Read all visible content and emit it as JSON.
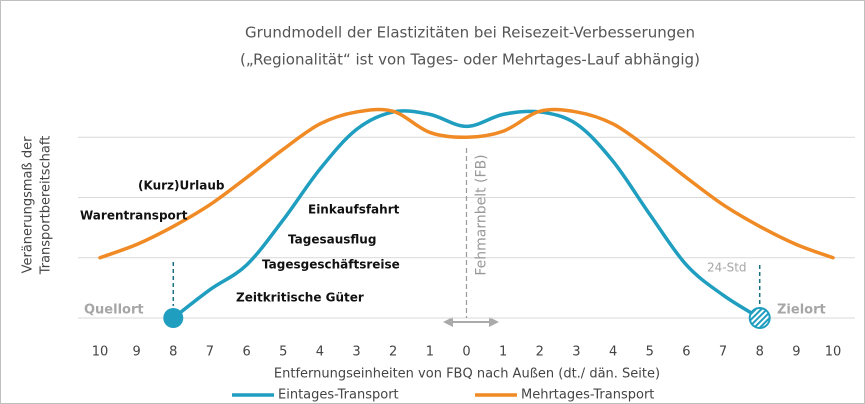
{
  "chart_data": {
    "type": "line",
    "title": "Grundmodell der Elastizitäten bei Reisezeit-Verbesserungen",
    "subtitle": "(„Regionalität“ ist von Tages- oder Mehrtages-Lauf abhängig)",
    "xlabel": "Entfernungseinheiten von FBQ nach Außen (dt./ dän. Seite)",
    "ylabel": [
      "Veränerungsmaß der",
      "Transportbereitschaft"
    ],
    "x": [
      -10,
      -9,
      -8,
      -7,
      -6,
      -5,
      -4,
      -3,
      -2,
      -1,
      0,
      1,
      2,
      3,
      4,
      5,
      6,
      7,
      8,
      9,
      10
    ],
    "xlim": [
      -10.6,
      10.6
    ],
    "xticks": [
      {
        "value": -10,
        "label": "10"
      },
      {
        "value": -9,
        "label": "9"
      },
      {
        "value": -8,
        "label": "8"
      },
      {
        "value": -7,
        "label": "7"
      },
      {
        "value": -6,
        "label": "6"
      },
      {
        "value": -5,
        "label": "5"
      },
      {
        "value": -4,
        "label": "4"
      },
      {
        "value": -3,
        "label": "3"
      },
      {
        "value": -2,
        "label": "2"
      },
      {
        "value": -1,
        "label": "1"
      },
      0,
      1,
      2,
      3,
      4,
      5,
      6,
      7,
      8,
      9,
      10
    ],
    "ylim": [
      0,
      4
    ],
    "yticks": [
      0,
      1,
      2,
      3
    ],
    "grid": true,
    "series": [
      {
        "name": "Eintages-Transport",
        "color": "#1f9ec0",
        "values": [
          null,
          null,
          0,
          0.47,
          0.88,
          1.63,
          2.47,
          3.13,
          3.42,
          3.38,
          3.18,
          3.38,
          3.42,
          3.22,
          2.6,
          1.72,
          0.88,
          0.38,
          0,
          null,
          null
        ]
      },
      {
        "name": "Mehrtages-Transport",
        "color": "#f08a24",
        "values": [
          1.0,
          1.22,
          1.52,
          1.88,
          2.33,
          2.8,
          3.22,
          3.42,
          3.43,
          3.08,
          3.0,
          3.1,
          3.43,
          3.42,
          3.22,
          2.8,
          2.33,
          1.88,
          1.52,
          1.22,
          1.0
        ]
      }
    ],
    "annotations": [
      "(Kurz)Urlaub",
      "Warentransport",
      "Einkaufsfahrt",
      "Tagesausflug",
      "Tagesgeschäftsreise",
      "Zeitkritische Güter",
      "Quellort",
      "Zielort",
      "24-Std",
      "Fehmarnbelt (FB)"
    ]
  }
}
